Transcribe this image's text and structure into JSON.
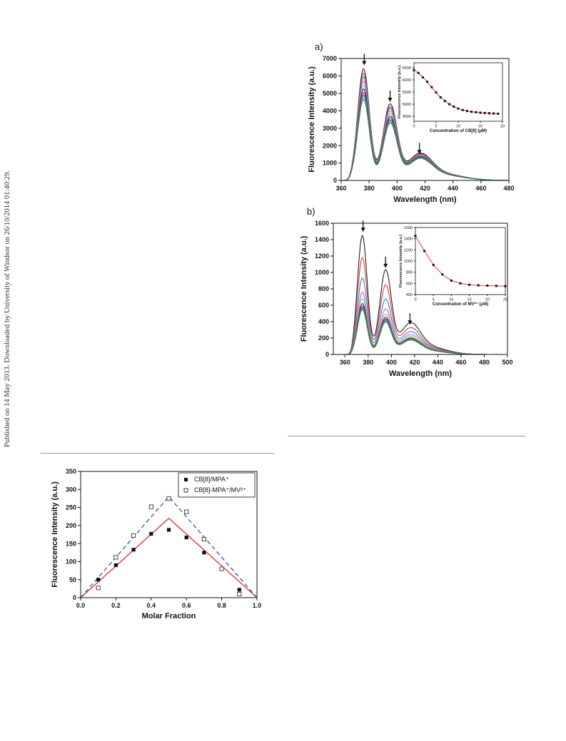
{
  "watermark": "Published on 14 May 2013. Downloaded by University of Windsor on 26/10/2014 01:40:29.",
  "chart_data": [
    {
      "panel": "a)",
      "type": "line",
      "xlabel": "Wavelength (nm)",
      "ylabel": "Fluorescence Intensity (a.u.)",
      "xlim": [
        360,
        480
      ],
      "ylim": [
        0,
        7000
      ],
      "xticks": [
        360,
        380,
        400,
        420,
        440,
        460,
        480
      ],
      "yticks": [
        0,
        1000,
        2000,
        3000,
        4000,
        5000,
        6000,
        7000
      ],
      "peaks": [
        376,
        395,
        416
      ],
      "series": [
        {
          "color": "#222222",
          "peaks": [
            6400,
            4300,
            1300
          ]
        },
        {
          "color": "#e53935",
          "peaks": [
            6150,
            4150,
            1260
          ]
        },
        {
          "color": "#1e88e5",
          "peaks": [
            5950,
            4050,
            1230
          ]
        },
        {
          "color": "#e056c8",
          "peaks": [
            5700,
            3900,
            1200
          ]
        },
        {
          "color": "#9acd32",
          "peaks": [
            5450,
            3750,
            1170
          ]
        },
        {
          "color": "#1a237e",
          "peaks": [
            5250,
            3600,
            1140
          ]
        },
        {
          "color": "#8e24aa",
          "peaks": [
            5050,
            3480,
            1110
          ]
        },
        {
          "color": "#795548",
          "peaks": [
            4900,
            3380,
            1090
          ]
        },
        {
          "color": "#26c6da",
          "peaks": [
            4780,
            3300,
            1070
          ]
        },
        {
          "color": "#2e7d32",
          "peaks": [
            4650,
            3220,
            1050
          ]
        }
      ],
      "arrows_at_nm": [
        376,
        395,
        416
      ],
      "inset": {
        "xlabel": "Concentration of CB[8] (μM)",
        "ylabel": "Fluorescence Intensity (a.u.)",
        "xlim": [
          0,
          20
        ],
        "ylim": [
          4300,
          6700
        ],
        "xticks": [
          0,
          5,
          10,
          15,
          20
        ],
        "yticks": [
          4500,
          5000,
          5500,
          6000,
          6500
        ],
        "x": [
          0,
          1,
          2,
          3,
          4,
          5,
          6,
          7,
          8,
          9,
          10,
          11,
          12,
          13,
          14,
          15,
          16,
          17,
          18,
          19
        ],
        "y": [
          6400,
          6280,
          6100,
          5920,
          5700,
          5480,
          5280,
          5130,
          5000,
          4900,
          4820,
          4760,
          4720,
          4690,
          4670,
          4650,
          4640,
          4630,
          4620,
          4610
        ]
      }
    },
    {
      "panel": "b)",
      "type": "line",
      "xlabel": "Wavelength (nm)",
      "ylabel": "Fluorescence Intensity (a.u.)",
      "xlim": [
        350,
        500
      ],
      "ylim": [
        0,
        1600
      ],
      "xticks": [
        360,
        380,
        400,
        420,
        440,
        460,
        480,
        500
      ],
      "yticks": [
        0,
        200,
        400,
        600,
        800,
        1000,
        1200,
        1400,
        1600
      ],
      "peaks": [
        375,
        395,
        416
      ],
      "series": [
        {
          "color": "#222222",
          "peaks": [
            1450,
            1010,
            320
          ]
        },
        {
          "color": "#e53935",
          "peaks": [
            1180,
            830,
            270
          ]
        },
        {
          "color": "#1e88e5",
          "peaks": [
            930,
            660,
            230
          ]
        },
        {
          "color": "#e056c8",
          "peaks": [
            760,
            540,
            200
          ]
        },
        {
          "color": "#9acd32",
          "peaks": [
            680,
            480,
            180
          ]
        },
        {
          "color": "#1a237e",
          "peaks": [
            620,
            440,
            165
          ]
        },
        {
          "color": "#8e24aa",
          "peaks": [
            590,
            420,
            160
          ]
        },
        {
          "color": "#795548",
          "peaks": [
            570,
            405,
            155
          ]
        },
        {
          "color": "#26c6da",
          "peaks": [
            555,
            395,
            150
          ]
        },
        {
          "color": "#2e7d32",
          "peaks": [
            545,
            385,
            145
          ]
        }
      ],
      "arrows_at_nm": [
        375,
        395,
        416
      ],
      "inset": {
        "xlabel": "Concentration of MV²⁺ (μM)",
        "ylabel": "Fluorescence Intensity (a.u.)",
        "xlim": [
          0,
          25
        ],
        "ylim": [
          400,
          1600
        ],
        "xticks": [
          0,
          5,
          10,
          15,
          20,
          25
        ],
        "yticks": [
          400,
          600,
          800,
          1000,
          1200,
          1400,
          1600
        ],
        "x": [
          0,
          2.5,
          5,
          7.5,
          10,
          12.5,
          15,
          17.5,
          20,
          22.5,
          25
        ],
        "y": [
          1450,
          1180,
          930,
          760,
          650,
          600,
          575,
          565,
          560,
          555,
          550
        ]
      }
    },
    {
      "type": "scatter",
      "xlabel": "Molar Fraction",
      "ylabel": "Fluorescence Intensity (a.u.)",
      "xlim": [
        0.0,
        1.0
      ],
      "ylim": [
        0,
        350
      ],
      "xticks": [
        0.0,
        0.2,
        0.4,
        0.6,
        0.8,
        1.0
      ],
      "xticklabels": [
        "0.0",
        "0.2",
        "0.4",
        "0.6",
        "0.8",
        "1.0"
      ],
      "yticks": [
        0,
        50,
        100,
        150,
        200,
        250,
        300,
        350
      ],
      "legend": "top-right",
      "series": [
        {
          "name": "CB[8]/MPA⁺",
          "marker": "filled-square",
          "color": "#111111",
          "x": [
            0.1,
            0.2,
            0.3,
            0.4,
            0.5,
            0.6,
            0.7,
            0.9
          ],
          "y": [
            50,
            90,
            133,
            177,
            188,
            167,
            125,
            22
          ],
          "fit_color": "#e53935",
          "fit_style": "solid",
          "fit": [
            [
              0,
              0
            ],
            [
              0.5,
              220
            ],
            [
              1.0,
              0
            ]
          ]
        },
        {
          "name": "CB[8]-MPA⁺/MV²⁺",
          "marker": "open-square",
          "color": "#333333",
          "x": [
            0.1,
            0.2,
            0.3,
            0.4,
            0.5,
            0.6,
            0.7,
            0.8,
            0.9
          ],
          "y": [
            27,
            112,
            172,
            252,
            275,
            238,
            162,
            80,
            10
          ],
          "fit_color": "#3a5fb5",
          "fit_style": "dashed",
          "fit": [
            [
              0,
              0
            ],
            [
              0.5,
              280
            ],
            [
              1.0,
              0
            ]
          ]
        }
      ]
    }
  ]
}
